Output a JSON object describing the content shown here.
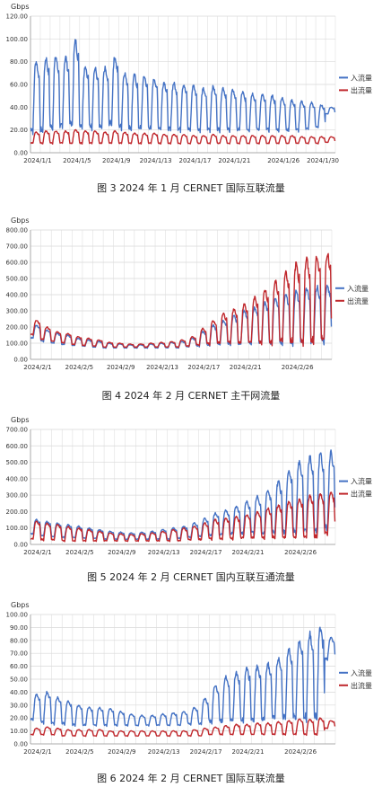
{
  "figures": [
    {
      "caption": "图 3  2024 年 1 月 CERNET 国际互联流量"
    },
    {
      "caption": "图 4  2024 年 2 月 CERNET 主干网流量"
    },
    {
      "caption": "图 5  2024 年 2 月 CERNET 国内互联互通流量"
    },
    {
      "caption": "图 6  2024 年 2 月 CERNET 国际互联流量"
    }
  ],
  "colors": {
    "inbound": "#4472C4",
    "outbound": "#C0282D",
    "grid": "#d9d9d9"
  },
  "chart_data": [
    {
      "type": "line",
      "ylabel": "Gbps",
      "ylim": [
        0,
        120
      ],
      "yticks": [
        "0.00",
        "20.00",
        "40.00",
        "60.00",
        "80.00",
        "100.00",
        "120.00"
      ],
      "xticks": [
        "2024/1/1",
        "2024/1/5",
        "2024/1/9",
        "2024/1/13",
        "2024/1/17",
        "2024/1/21",
        "2024/1/26",
        "2024/1/30"
      ],
      "xtick_days": [
        0,
        4,
        8,
        12,
        16,
        20,
        25,
        29
      ],
      "days": 31,
      "legend_position": "right",
      "series": [
        {
          "name": "入流量",
          "daily_peak": [
            80,
            83,
            84,
            84,
            98,
            76,
            74,
            74,
            84,
            70,
            68,
            67,
            65,
            62,
            61,
            60,
            59,
            56,
            58,
            57,
            55,
            53,
            52,
            51,
            50,
            48,
            46,
            45,
            44,
            42,
            40
          ],
          "daily_low": [
            18,
            17,
            20,
            20,
            22,
            22,
            21,
            20,
            23,
            21,
            20,
            20,
            20,
            20,
            19,
            19,
            19,
            19,
            19,
            19,
            19,
            19,
            19,
            19,
            19,
            19,
            19,
            19,
            20,
            22,
            34
          ]
        },
        {
          "name": "出流量",
          "daily_peak": [
            18,
            19,
            19,
            19,
            20,
            19,
            19,
            18,
            19,
            18,
            17,
            17,
            17,
            16,
            16,
            16,
            15,
            15,
            16,
            15,
            15,
            15,
            15,
            15,
            15,
            15,
            15,
            14,
            14,
            14,
            14
          ],
          "daily_low": [
            8,
            8,
            8,
            8,
            8,
            8,
            8,
            8,
            8,
            8,
            8,
            8,
            8,
            8,
            8,
            8,
            8,
            8,
            8,
            8,
            8,
            8,
            8,
            8,
            8,
            8,
            8,
            8,
            8,
            8,
            9
          ]
        }
      ]
    },
    {
      "type": "line",
      "ylabel": "Gbps",
      "ylim": [
        0,
        800
      ],
      "yticks": [
        "0.00",
        "100.00",
        "200.00",
        "300.00",
        "400.00",
        "500.00",
        "600.00",
        "700.00",
        "800.00"
      ],
      "xticks": [
        "2024/2/1",
        "2024/2/5",
        "2024/2/9",
        "2024/2/13",
        "2024/2/17",
        "2024/2/21",
        "2024/2/26"
      ],
      "xtick_days": [
        0,
        4,
        8,
        12,
        16,
        20,
        25
      ],
      "days": 29,
      "legend_position": "right",
      "series": [
        {
          "name": "入流量",
          "daily_peak": [
            210,
            180,
            160,
            150,
            130,
            120,
            110,
            100,
            95,
            90,
            90,
            95,
            100,
            105,
            110,
            130,
            170,
            210,
            240,
            270,
            300,
            320,
            350,
            380,
            400,
            420,
            440,
            450,
            460
          ],
          "daily_low": [
            130,
            110,
            100,
            90,
            85,
            80,
            75,
            70,
            70,
            70,
            70,
            70,
            70,
            70,
            70,
            75,
            80,
            85,
            90,
            90,
            90,
            90,
            90,
            90,
            90,
            90,
            90,
            90,
            100
          ]
        },
        {
          "name": "出流量",
          "daily_peak": [
            240,
            200,
            170,
            160,
            140,
            130,
            120,
            105,
            100,
            95,
            95,
            100,
            105,
            110,
            120,
            140,
            190,
            240,
            280,
            310,
            340,
            380,
            430,
            480,
            540,
            590,
            620,
            640,
            660
          ],
          "daily_low": [
            150,
            120,
            110,
            100,
            90,
            85,
            80,
            75,
            75,
            75,
            75,
            75,
            75,
            75,
            75,
            80,
            85,
            90,
            95,
            95,
            95,
            95,
            95,
            95,
            95,
            95,
            95,
            95,
            110
          ]
        }
      ]
    },
    {
      "type": "line",
      "ylabel": "Gbps",
      "ylim": [
        0,
        700
      ],
      "yticks": [
        "0.00",
        "100.00",
        "200.00",
        "300.00",
        "400.00",
        "500.00",
        "600.00",
        "700.00"
      ],
      "xticks": [
        "2024/2/1",
        "2024/2/5",
        "2024/2/9",
        "2024/2/13",
        "2024/2/17",
        "2024/2/21",
        "2024/2/26"
      ],
      "xtick_days": [
        0,
        4,
        8,
        12,
        16,
        20,
        25
      ],
      "days": 29,
      "legend_position": "right",
      "series": [
        {
          "name": "入流量",
          "daily_peak": [
            150,
            140,
            130,
            120,
            110,
            100,
            90,
            80,
            75,
            70,
            75,
            80,
            90,
            100,
            110,
            130,
            160,
            190,
            210,
            230,
            260,
            290,
            330,
            380,
            450,
            500,
            530,
            550,
            560
          ],
          "daily_low": [
            60,
            50,
            45,
            40,
            40,
            35,
            35,
            30,
            30,
            30,
            30,
            30,
            30,
            30,
            35,
            40,
            45,
            50,
            55,
            60,
            60,
            60,
            60,
            60,
            60,
            60,
            60,
            60,
            80
          ]
        },
        {
          "name": "出流量",
          "daily_peak": [
            140,
            130,
            120,
            110,
            100,
            90,
            80,
            70,
            65,
            60,
            65,
            70,
            80,
            90,
            100,
            110,
            130,
            150,
            160,
            170,
            180,
            200,
            220,
            240,
            260,
            280,
            300,
            310,
            320
          ],
          "daily_low": [
            30,
            25,
            25,
            20,
            20,
            20,
            20,
            20,
            20,
            20,
            20,
            20,
            20,
            20,
            20,
            25,
            25,
            30,
            30,
            30,
            35,
            35,
            35,
            35,
            35,
            35,
            35,
            35,
            60
          ]
        }
      ]
    },
    {
      "type": "line",
      "ylabel": "Gbps",
      "ylim": [
        0,
        100
      ],
      "yticks": [
        "0.00",
        "10.00",
        "20.00",
        "30.00",
        "40.00",
        "50.00",
        "60.00",
        "70.00",
        "80.00",
        "90.00",
        "100.00"
      ],
      "xticks": [
        "2024/2/1",
        "2024/2/5",
        "2024/2/9",
        "2024/2/13",
        "2024/2/17",
        "2024/2/21",
        "2024/2/26"
      ],
      "xtick_days": [
        0,
        4,
        8,
        12,
        16,
        20,
        25
      ],
      "days": 29,
      "legend_position": "right",
      "series": [
        {
          "name": "入流量",
          "daily_peak": [
            38,
            40,
            36,
            33,
            30,
            28,
            28,
            27,
            25,
            23,
            22,
            22,
            23,
            24,
            25,
            28,
            35,
            45,
            52,
            55,
            58,
            60,
            62,
            66,
            74,
            80,
            85,
            90,
            82
          ],
          "daily_low": [
            18,
            16,
            15,
            15,
            14,
            14,
            14,
            14,
            14,
            14,
            14,
            14,
            14,
            14,
            14,
            15,
            15,
            16,
            16,
            17,
            17,
            17,
            17,
            18,
            18,
            18,
            18,
            18,
            65
          ]
        },
        {
          "name": "出流量",
          "daily_peak": [
            12,
            13,
            12,
            11,
            11,
            11,
            11,
            10,
            10,
            10,
            10,
            10,
            10,
            10,
            10,
            11,
            12,
            13,
            14,
            15,
            15,
            16,
            16,
            17,
            18,
            19,
            19,
            20,
            18
          ],
          "daily_low": [
            7,
            7,
            7,
            6,
            6,
            6,
            6,
            6,
            6,
            6,
            6,
            6,
            6,
            6,
            6,
            6,
            6,
            7,
            7,
            7,
            7,
            7,
            7,
            7,
            7,
            7,
            7,
            7,
            12
          ]
        }
      ]
    }
  ]
}
